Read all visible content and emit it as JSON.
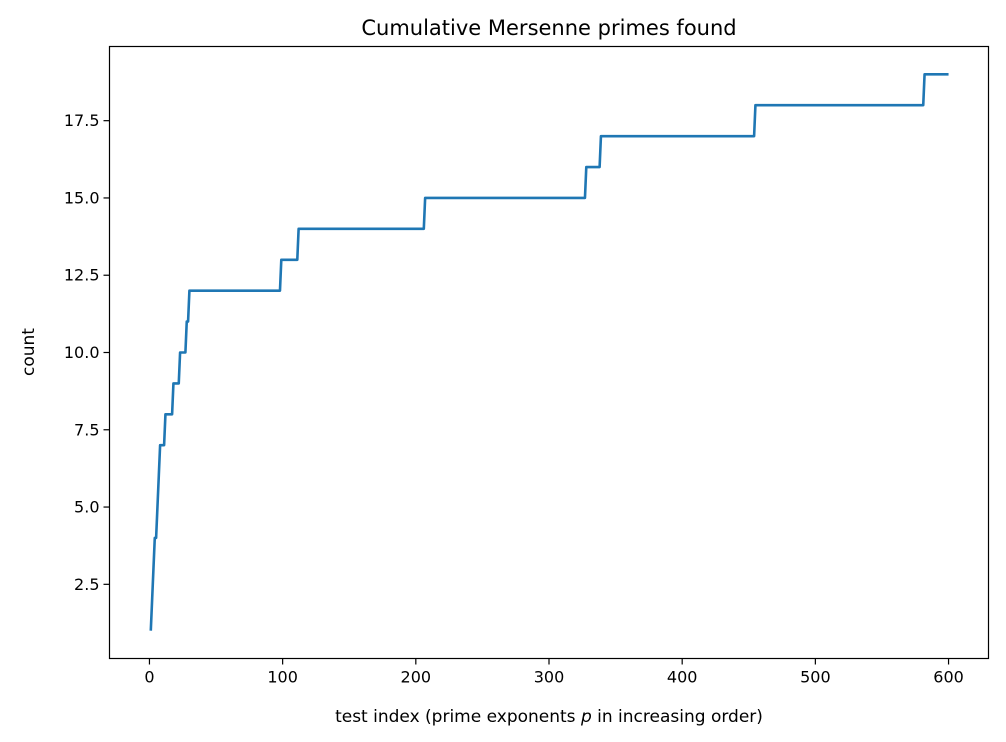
{
  "chart_data": {
    "type": "line",
    "title": "Cumulative Mersenne primes found",
    "xlabel": "test index (prime exponents p in increasing order)",
    "xlabel_parts": [
      "test index (prime exponents ",
      "p",
      " in increasing order)"
    ],
    "ylabel": "count",
    "xlim": [
      -30,
      630
    ],
    "ylim": [
      0.1,
      19.9
    ],
    "xticks": [
      0,
      100,
      200,
      300,
      400,
      500,
      600
    ],
    "xtick_labels": [
      "0",
      "100",
      "200",
      "300",
      "400",
      "500",
      "600"
    ],
    "yticks": [
      2.5,
      5.0,
      7.5,
      10.0,
      12.5,
      15.0,
      17.5
    ],
    "ytick_labels": [
      "2.5",
      "5.0",
      "7.5",
      "10.0",
      "12.5",
      "15.0",
      "17.5"
    ],
    "grid": false,
    "legend": "none",
    "color": "#1f77b4",
    "series": [
      {
        "x": [
          1,
          2,
          3,
          4,
          5,
          6,
          7,
          8,
          9,
          10,
          11,
          12,
          13,
          16,
          17,
          18,
          22,
          23,
          24,
          27,
          28,
          29,
          30,
          31,
          98,
          99,
          111,
          112,
          206,
          207,
          327,
          328,
          338,
          339,
          454,
          455,
          581,
          582,
          600
        ],
        "y": [
          1,
          2,
          3,
          4,
          4,
          5,
          6,
          7,
          7,
          7,
          7,
          8,
          8,
          8,
          8,
          9,
          9,
          10,
          10,
          10,
          11,
          11,
          12,
          12,
          12,
          13,
          13,
          14,
          14,
          15,
          15,
          16,
          16,
          17,
          17,
          18,
          18,
          19,
          19
        ]
      }
    ]
  }
}
